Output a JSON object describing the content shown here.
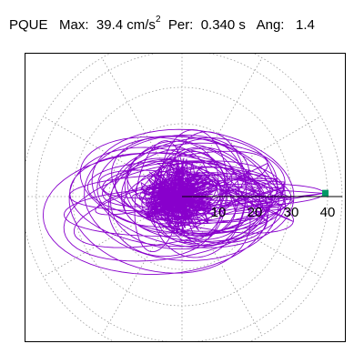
{
  "header": {
    "station": "PQUE",
    "max_label": "Max:",
    "max_value": "39.4",
    "max_unit_base": "cm/s",
    "max_unit_exp": "2",
    "per_label": "Per:",
    "per_value": "0.340 s",
    "ang_label": "Ang:",
    "ang_value": "1.4"
  },
  "chart_data": {
    "type": "scatter",
    "title": "",
    "r_ticks": [
      "10",
      "20",
      "30",
      "40"
    ],
    "r_max": 44,
    "angular_gridlines_deg": [
      0,
      30,
      60,
      90,
      120,
      150,
      180,
      210,
      240,
      270,
      300,
      330
    ],
    "series": [
      {
        "style": "line",
        "color": "#8800cc",
        "description_points_x": [
          -30,
          -20,
          -10,
          0,
          10,
          20,
          30,
          39.4
        ],
        "peak": {
          "x": 39.4,
          "y": 1.0,
          "radius": 39.4,
          "angle_deg": 1.4
        }
      }
    ],
    "marker": {
      "color": "#009966",
      "shape": "square",
      "radius": 39.4,
      "angle_deg": 1.4
    },
    "grid": true,
    "grid_style": "dotted"
  }
}
